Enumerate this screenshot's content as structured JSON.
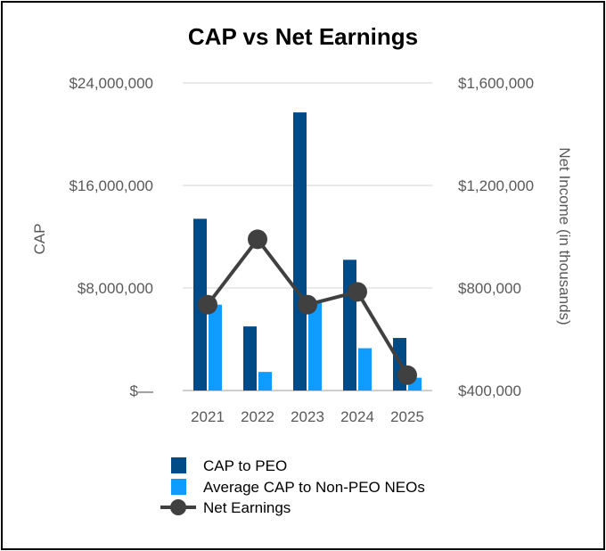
{
  "chart_data": {
    "type": "bar",
    "title": "CAP vs Net Earnings",
    "categories": [
      "2021",
      "2022",
      "2023",
      "2024",
      "2025"
    ],
    "series": [
      {
        "name": "CAP to PEO",
        "type": "bar",
        "axis": "left",
        "color": "#004A86",
        "values": [
          13400000,
          5000000,
          21700000,
          10200000,
          4100000
        ]
      },
      {
        "name": "Average CAP to Non-PEO NEOs",
        "type": "bar",
        "axis": "left",
        "color": "#0F9BFF",
        "values": [
          6700000,
          1450000,
          6900000,
          3300000,
          1000000
        ]
      },
      {
        "name": "Net Earnings",
        "type": "line",
        "axis": "right",
        "color": "#404040",
        "values": [
          735000,
          990000,
          735000,
          785000,
          460000
        ]
      }
    ],
    "ylabel": "CAP",
    "y2label": "Net Income (in thousands)",
    "ylim": [
      0,
      24000000
    ],
    "y2lim": [
      400000,
      1600000
    ],
    "yticks": [
      {
        "value": 0,
        "label": "$—"
      },
      {
        "value": 8000000,
        "label": "$8,000,000"
      },
      {
        "value": 16000000,
        "label": "$16,000,000"
      },
      {
        "value": 24000000,
        "label": "$24,000,000"
      }
    ],
    "y2ticks": [
      {
        "value": 400000,
        "label": "$400,000"
      },
      {
        "value": 800000,
        "label": "$800,000"
      },
      {
        "value": 1200000,
        "label": "$1,200,000"
      },
      {
        "value": 1600000,
        "label": "$1,600,000"
      }
    ],
    "grid": true,
    "legend": "bottom"
  }
}
